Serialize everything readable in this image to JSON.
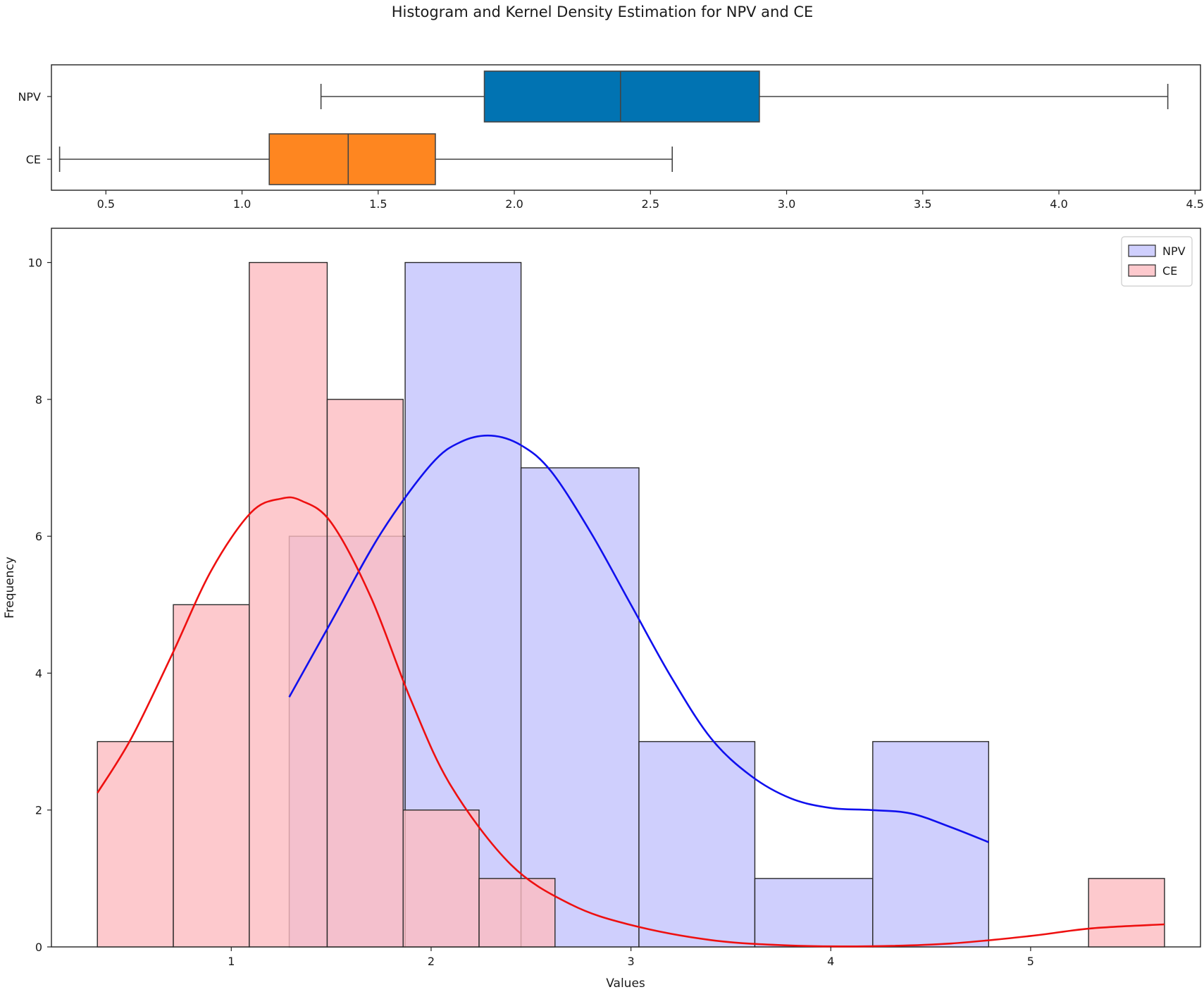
{
  "title": "Histogram and Kernel Density Estimation for NPV and CE",
  "chart_data": [
    {
      "type": "box",
      "orientation": "horizontal",
      "xlim": [
        0.3,
        4.52
      ],
      "x_ticks": [
        0.5,
        1.0,
        1.5,
        2.0,
        2.5,
        3.0,
        3.5,
        4.0,
        4.5
      ],
      "x_tick_labels": [
        "0.5",
        "1.0",
        "1.5",
        "2.0",
        "2.5",
        "3.0",
        "3.5",
        "4.0",
        "4.5"
      ],
      "series": [
        {
          "name": "NPV",
          "color": "#0173b2",
          "whisker_low": 1.29,
          "q1": 1.89,
          "median": 2.39,
          "q3": 2.9,
          "whisker_high": 4.4
        },
        {
          "name": "CE",
          "color": "#fe8620",
          "whisker_low": 0.33,
          "q1": 1.1,
          "median": 1.39,
          "q3": 1.71,
          "whisker_high": 2.58
        }
      ]
    },
    {
      "type": "histogram",
      "xlabel": "Values",
      "ylabel": "Frequency",
      "xlim": [
        0.1,
        5.85
      ],
      "ylim": [
        0,
        10.5
      ],
      "x_ticks": [
        1,
        2,
        3,
        4,
        5
      ],
      "x_tick_labels": [
        "1",
        "2",
        "3",
        "4",
        "5"
      ],
      "y_ticks": [
        0,
        2,
        4,
        6,
        8,
        10
      ],
      "y_tick_labels": [
        "0",
        "2",
        "4",
        "6",
        "8",
        "10"
      ],
      "legend": {
        "position": "upper right"
      },
      "series": [
        {
          "name": "NPV",
          "fill": "#c3c3fc",
          "kde_color": "#1010ee",
          "bin_edges": [
            1.29,
            1.87,
            2.45,
            3.04,
            3.62,
            4.21,
            4.79
          ],
          "counts": [
            6,
            10,
            7,
            3,
            1,
            3
          ],
          "kde": {
            "x": [
              1.29,
              1.5,
              1.75,
              2.0,
              2.15,
              2.3,
              2.45,
              2.6,
              2.8,
              3.0,
              3.2,
              3.4,
              3.6,
              3.8,
              4.0,
              4.2,
              4.4,
              4.6,
              4.79
            ],
            "y": [
              3.65,
              4.75,
              6.05,
              7.05,
              7.38,
              7.47,
              7.33,
              6.95,
              6.05,
              5.0,
              3.95,
              3.05,
              2.5,
              2.17,
              2.03,
              2.0,
              1.95,
              1.75,
              1.53
            ]
          }
        },
        {
          "name": "CE",
          "fill": "#fdbcc0",
          "kde_color": "#ee1010",
          "bin_edges": [
            0.33,
            0.71,
            1.09,
            1.48,
            1.86,
            2.24,
            2.62,
            3.0,
            3.39,
            3.77,
            4.15,
            4.53,
            4.91,
            5.29,
            5.67
          ],
          "counts": [
            3,
            5,
            10,
            8,
            2,
            1,
            0,
            0,
            0,
            0,
            0,
            0,
            0,
            1
          ],
          "kde": {
            "x": [
              0.33,
              0.5,
              0.7,
              0.9,
              1.1,
              1.25,
              1.35,
              1.5,
              1.7,
              1.9,
              2.1,
              2.4,
              2.7,
              3.0,
              3.4,
              3.8,
              4.2,
              4.6,
              5.0,
              5.3,
              5.67
            ],
            "y": [
              2.25,
              3.05,
              4.25,
              5.5,
              6.35,
              6.55,
              6.52,
              6.2,
              5.1,
              3.6,
              2.35,
              1.2,
              0.62,
              0.32,
              0.1,
              0.02,
              0.01,
              0.05,
              0.16,
              0.27,
              0.33
            ]
          }
        }
      ]
    }
  ]
}
